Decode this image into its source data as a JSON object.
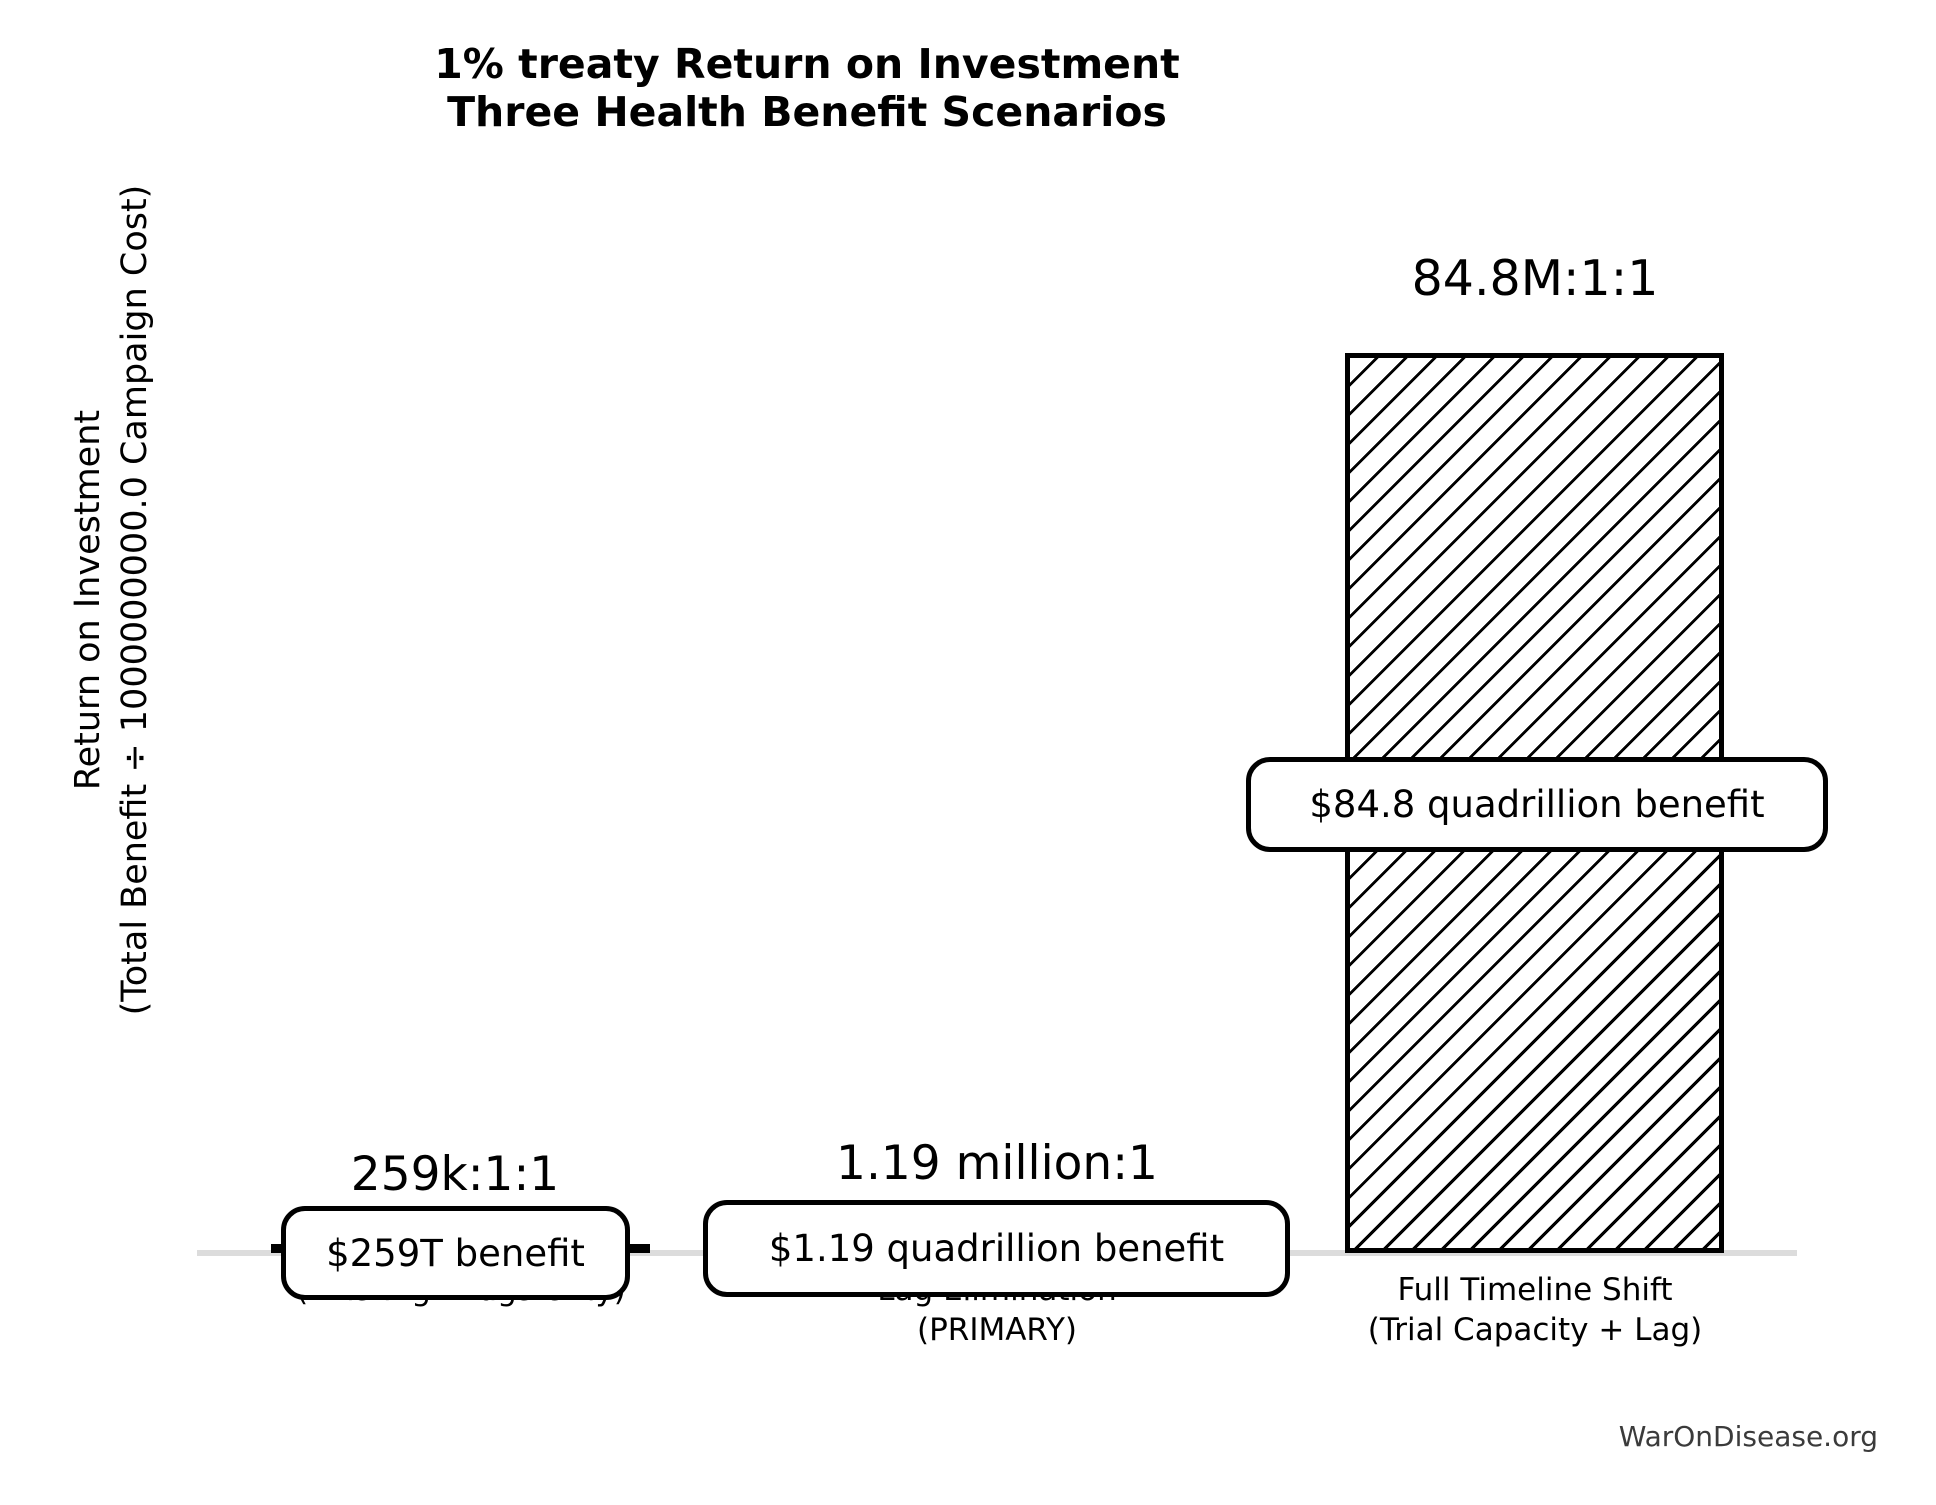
{
  "title": {
    "line1": "1% treaty Return on Investment",
    "line2": "Three Health Benefit Scenarios"
  },
  "y_axis": {
    "label_line1": "Return on Investment",
    "label_line2": "(Total Benefit ÷ 1000000000.0 Campaign Cost)"
  },
  "footer": {
    "text": "WarOnDisease.org"
  },
  "colors": {
    "background": "#ffffff",
    "ink": "#000000",
    "baseline": "#dcdcdc",
    "footer_text": "#3b3b3b",
    "bar_fill": "#ffffff",
    "bar_hatch": "#000000"
  },
  "bars": [
    {
      "ratio_label": "259k:1:1",
      "benefit_label": "$259T benefit",
      "tick_line1": "",
      "tick_line2": "(Existing Drugs Only)"
    },
    {
      "ratio_label": "1.19 million:1",
      "benefit_label": "$1.19 quadrillion benefit",
      "tick_line1": "Lag Elimination",
      "tick_line2": "(PRIMARY)"
    },
    {
      "ratio_label": "84.8M:1:1",
      "benefit_label": "$84.8 quadrillion benefit",
      "tick_line1": "Full Timeline Shift",
      "tick_line2": "(Trial Capacity + Lag)"
    }
  ],
  "chart_data": {
    "type": "bar",
    "title": "1% treaty Return on Investment — Three Health Benefit Scenarios",
    "xlabel": "",
    "ylabel": "Return on Investment (Total Benefit ÷ 1000000000.0 Campaign Cost)",
    "categories": [
      "(Existing Drugs Only)",
      "Lag Elimination (PRIMARY)",
      "Full Timeline Shift (Trial Capacity + Lag)"
    ],
    "values": [
      259000,
      1190000,
      84800000
    ],
    "value_annotations": [
      "259k:1:1",
      "1.19 million:1",
      "84.8M:1:1"
    ],
    "benefit_annotations": [
      "$259T benefit",
      "$1.19 quadrillion benefit",
      "$84.8 quadrillion benefit"
    ],
    "campaign_cost_divisor": 1000000000.0,
    "ylim": [
      0,
      84800000
    ],
    "grid": false,
    "legend": false,
    "bar_style": "white fill, black diagonal hatch on tallest bar, black edges",
    "source_credit": "WarOnDisease.org"
  }
}
